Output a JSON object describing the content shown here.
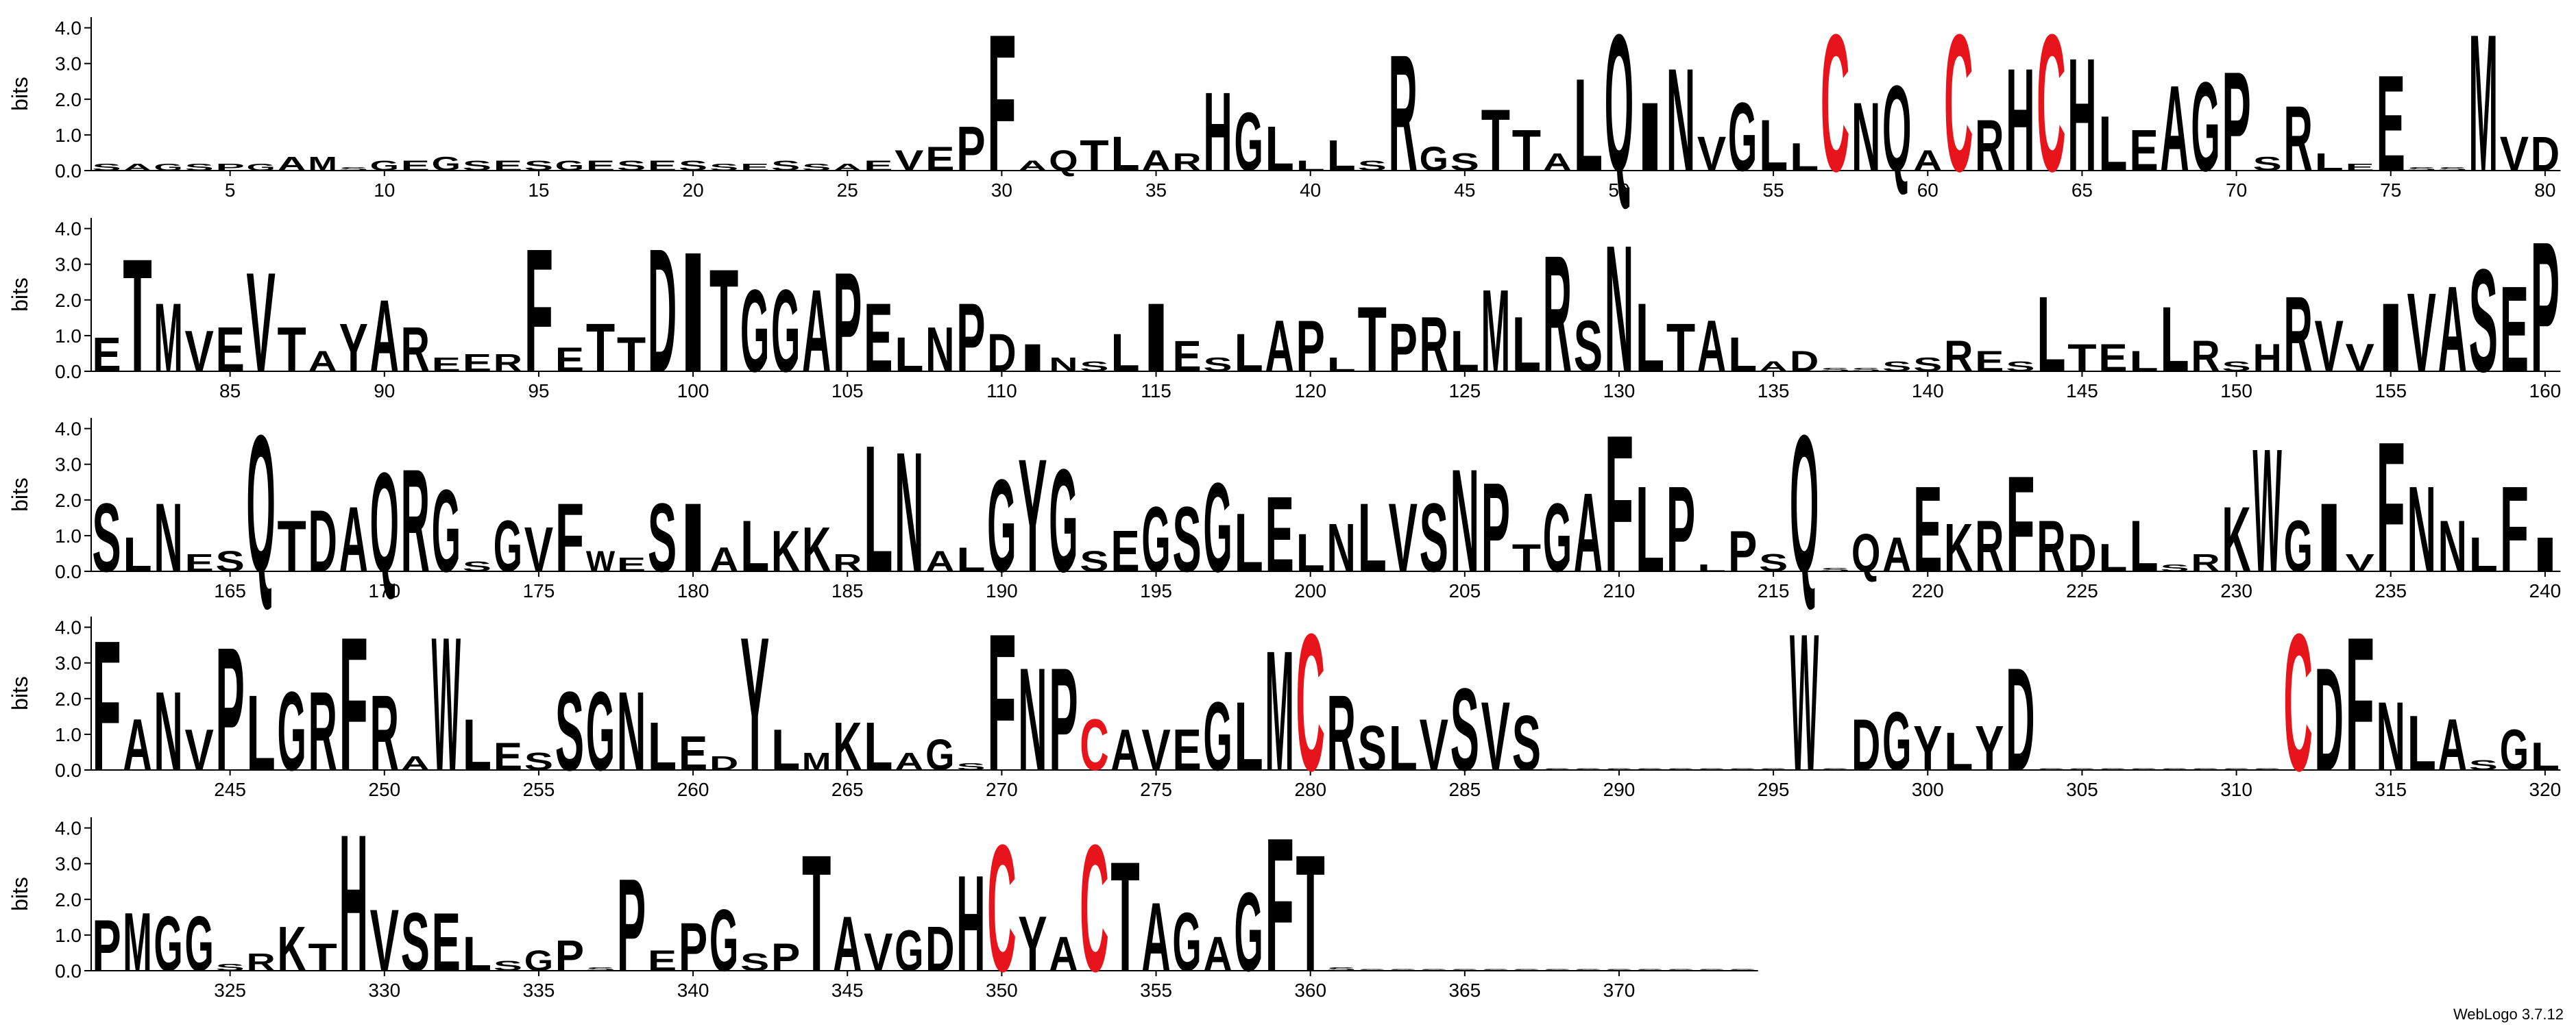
{
  "chart_data": [
    {
      "type": "logo",
      "ylabel": "bits",
      "ylim": [
        0,
        4.3
      ],
      "yticks": [
        {
          "value": 0,
          "label": "0.0"
        },
        {
          "value": 1,
          "label": "1.0"
        },
        {
          "value": 2,
          "label": "2.0"
        },
        {
          "value": 3,
          "label": "3.0"
        },
        {
          "value": 4,
          "label": "4.0"
        }
      ],
      "xlim": [
        0.5,
        80.5
      ],
      "xticks": [
        5,
        10,
        15,
        20,
        25,
        30,
        35,
        40,
        45,
        50,
        55,
        60,
        65,
        70,
        75,
        80
      ],
      "letter_colors": {
        "C": "#e8141b"
      },
      "default_color": "#000000",
      "letters": [
        "S",
        "A",
        "G",
        "S",
        "P",
        "G",
        "A",
        "M",
        "S",
        "G",
        "E",
        "G",
        "S",
        "E",
        "S",
        "G",
        "E",
        "S",
        "E",
        "S",
        "S",
        "E",
        "S",
        "S",
        "A",
        "E",
        "V",
        "E",
        "P",
        "F",
        "A",
        "Q",
        "T",
        "L",
        "A",
        "R",
        "H",
        "G",
        "L",
        "L",
        "L",
        "S",
        "R",
        "G",
        "S",
        "T",
        "T",
        "A",
        "L",
        "Q",
        "I",
        "N",
        "V",
        "G",
        "L",
        "L",
        "C",
        "N",
        "Q",
        "A",
        "C",
        "R",
        "H",
        "C",
        "H",
        "L",
        "E",
        "A",
        "G",
        "P",
        "S",
        "R",
        "L",
        "E",
        "E",
        "S",
        "S",
        "M",
        "V",
        "D"
      ],
      "values": [
        0.2,
        0.2,
        0.2,
        0.2,
        0.2,
        0.2,
        0.4,
        0.4,
        0.1,
        0.3,
        0.3,
        0.4,
        0.3,
        0.3,
        0.3,
        0.3,
        0.3,
        0.3,
        0.3,
        0.3,
        0.2,
        0.2,
        0.3,
        0.2,
        0.2,
        0.3,
        0.6,
        0.7,
        1.3,
        4.0,
        0.3,
        0.6,
        0.9,
        1.0,
        0.6,
        0.5,
        2.3,
        1.7,
        1.3,
        0.3,
        0.9,
        0.3,
        3.4,
        0.7,
        0.5,
        1.8,
        1.2,
        0.5,
        2.7,
        4.0,
        2.0,
        3.0,
        1.0,
        2.0,
        1.5,
        0.8,
        4.0,
        2.0,
        2.5,
        0.6,
        4.0,
        1.5,
        3.0,
        4.0,
        3.3,
        1.6,
        1.2,
        2.5,
        2.6,
        2.9,
        0.4,
        1.9,
        0.5,
        0.2,
        2.8,
        0.1,
        0.1,
        4.0,
        1.0,
        1.0
      ]
    },
    {
      "type": "logo",
      "ylabel": "bits",
      "ylim": [
        0,
        4.3
      ],
      "yticks": [
        {
          "value": 0,
          "label": "0.0"
        },
        {
          "value": 1,
          "label": "1.0"
        },
        {
          "value": 2,
          "label": "2.0"
        },
        {
          "value": 3,
          "label": "3.0"
        },
        {
          "value": 4,
          "label": "4.0"
        }
      ],
      "xlim": [
        80.5,
        160.5
      ],
      "xticks": [
        85,
        90,
        95,
        100,
        105,
        110,
        115,
        120,
        125,
        130,
        135,
        140,
        145,
        150,
        155,
        160
      ],
      "letter_colors": {
        "C": "#e8141b"
      },
      "default_color": "#000000",
      "letters": [
        "E",
        "T",
        "M",
        "V",
        "E",
        "V",
        "T",
        "A",
        "Y",
        "A",
        "R",
        "E",
        "E",
        "R",
        "F",
        "E",
        "T",
        "T",
        "D",
        "I",
        "T",
        "G",
        "G",
        "A",
        "P",
        "E",
        "L",
        "N",
        "P",
        "D",
        "I",
        "N",
        "S",
        "L",
        "I",
        "E",
        "S",
        "L",
        "A",
        "P",
        "L",
        "T",
        "P",
        "R",
        "L",
        "M",
        "L",
        "R",
        "S",
        "N",
        "L",
        "T",
        "A",
        "L",
        "A",
        "D",
        "S",
        "S",
        "S",
        "S",
        "R",
        "E",
        "S",
        "L",
        "T",
        "E",
        "L",
        "L",
        "R",
        "S",
        "H",
        "R",
        "V",
        "V",
        "I",
        "V",
        "A",
        "S",
        "E",
        "P"
      ],
      "values": [
        1.0,
        3.3,
        2.0,
        1.2,
        1.3,
        2.9,
        1.3,
        0.6,
        1.4,
        2.1,
        1.3,
        0.4,
        0.5,
        0.5,
        3.6,
        0.7,
        1.4,
        1.0,
        3.6,
        3.5,
        3.0,
        2.4,
        2.4,
        2.4,
        2.9,
        2.0,
        1.0,
        1.3,
        2.0,
        1.1,
        0.8,
        0.4,
        0.3,
        1.1,
        2.0,
        0.9,
        0.4,
        1.1,
        1.5,
        1.5,
        0.4,
        1.9,
        1.4,
        1.6,
        1.2,
        2.4,
        1.6,
        3.4,
        1.5,
        3.7,
        2.0,
        1.4,
        1.5,
        1.0,
        0.3,
        0.6,
        0.1,
        0.1,
        0.3,
        0.4,
        0.9,
        0.6,
        0.3,
        2.2,
        0.8,
        0.8,
        0.6,
        1.9,
        0.9,
        0.3,
        0.8,
        2.2,
        1.5,
        0.8,
        2.0,
        2.3,
        2.5,
        3.0,
        2.5,
        3.8
      ]
    },
    {
      "type": "logo",
      "ylabel": "bits",
      "ylim": [
        0,
        4.3
      ],
      "yticks": [
        {
          "value": 0,
          "label": "0.0"
        },
        {
          "value": 1,
          "label": "1.0"
        },
        {
          "value": 2,
          "label": "2.0"
        },
        {
          "value": 3,
          "label": "3.0"
        },
        {
          "value": 4,
          "label": "4.0"
        }
      ],
      "xlim": [
        160.5,
        240.5
      ],
      "xticks": [
        165,
        170,
        175,
        180,
        185,
        190,
        195,
        200,
        205,
        210,
        215,
        220,
        225,
        230,
        235,
        240
      ],
      "letter_colors": {
        "C": "#e8141b"
      },
      "default_color": "#000000",
      "letters": [
        "S",
        "L",
        "N",
        "E",
        "S",
        "Q",
        "T",
        "D",
        "A",
        "Q",
        "R",
        "G",
        "S",
        "G",
        "V",
        "F",
        "W",
        "E",
        "S",
        "I",
        "A",
        "L",
        "K",
        "K",
        "R",
        "L",
        "N",
        "A",
        "L",
        "G",
        "Y",
        "G",
        "S",
        "E",
        "G",
        "S",
        "G",
        "L",
        "E",
        "L",
        "N",
        "L",
        "V",
        "S",
        "N",
        "P",
        "T",
        "G",
        "A",
        "F",
        "L",
        "P",
        "L",
        "P",
        "S",
        "Q",
        "S",
        "Q",
        "A",
        "E",
        "K",
        "R",
        "F",
        "R",
        "D",
        "L",
        "L",
        "S",
        "R",
        "K",
        "W",
        "G",
        "I",
        "V",
        "F",
        "N",
        "N",
        "L",
        "F",
        "I"
      ],
      "values": [
        2.0,
        1.0,
        2.0,
        0.5,
        0.6,
        4.0,
        1.5,
        1.8,
        1.9,
        2.9,
        3.0,
        2.4,
        0.3,
        1.5,
        1.3,
        2.0,
        0.6,
        0.4,
        2.0,
        2.0,
        0.7,
        1.5,
        1.2,
        1.3,
        0.5,
        3.7,
        3.5,
        0.6,
        0.7,
        2.7,
        3.3,
        3.0,
        0.6,
        1.2,
        1.9,
        1.9,
        2.6,
        1.7,
        2.2,
        1.1,
        1.4,
        2.0,
        2.0,
        2.0,
        3.0,
        2.6,
        0.8,
        2.0,
        2.3,
        4.0,
        2.5,
        2.5,
        0.2,
        1.2,
        0.5,
        4.0,
        0.1,
        1.1,
        1.0,
        2.5,
        1.4,
        1.5,
        2.8,
        1.5,
        1.1,
        0.8,
        1.5,
        0.2,
        0.5,
        1.9,
        3.6,
        1.5,
        2.0,
        0.5,
        3.8,
        2.5,
        1.5,
        1.0,
        2.5,
        1.0
      ]
    },
    {
      "type": "logo",
      "ylabel": "bits",
      "ylim": [
        0,
        4.3
      ],
      "yticks": [
        {
          "value": 0,
          "label": "0.0"
        },
        {
          "value": 1,
          "label": "1.0"
        },
        {
          "value": 2,
          "label": "2.0"
        },
        {
          "value": 3,
          "label": "3.0"
        },
        {
          "value": 4,
          "label": "4.0"
        }
      ],
      "xlim": [
        240.5,
        320.5
      ],
      "xticks": [
        245,
        250,
        255,
        260,
        265,
        270,
        275,
        280,
        285,
        290,
        295,
        300,
        305,
        310,
        315,
        320
      ],
      "letter_colors": {
        "C": "#e8141b"
      },
      "default_color": "#000000",
      "letters": [
        "F",
        "A",
        "N",
        "V",
        "P",
        "L",
        "G",
        "R",
        "F",
        "R",
        "A",
        "W",
        "L",
        "E",
        "S",
        "S",
        "G",
        "N",
        "L",
        "E",
        "D",
        "Y",
        "L",
        "M",
        "K",
        "L",
        "A",
        "G",
        "S",
        "F",
        "N",
        "P",
        "C",
        "A",
        "V",
        "E",
        "G",
        "L",
        "M",
        "C",
        "R",
        "S",
        "L",
        "V",
        "S",
        "V",
        "S",
        "S",
        "S",
        "S",
        "S",
        "S",
        "S",
        "S",
        "S",
        "W",
        "S",
        "D",
        "G",
        "Y",
        "L",
        "Y",
        "D",
        "S",
        "S",
        "S",
        "S",
        "S",
        "S",
        "S",
        "S",
        "C",
        "D",
        "F",
        "N",
        "L",
        "A",
        "S",
        "G",
        "L"
      ],
      "values": [
        3.8,
        1.5,
        2.3,
        1.2,
        3.6,
        2.2,
        2.3,
        2.3,
        3.9,
        2.2,
        0.4,
        3.9,
        1.5,
        0.8,
        0.5,
        2.3,
        2.3,
        2.3,
        1.4,
        1.0,
        0.4,
        3.9,
        1.2,
        0.5,
        1.4,
        1.4,
        0.5,
        0.9,
        0.2,
        4.0,
        3.0,
        3.0,
        1.5,
        1.2,
        1.2,
        1.2,
        2.0,
        2.0,
        3.5,
        4.0,
        2.2,
        1.3,
        1.3,
        1.5,
        2.4,
        2.0,
        1.6,
        0.05,
        0.05,
        0.05,
        0.05,
        0.05,
        0.05,
        0.05,
        0.05,
        4.0,
        0.05,
        1.5,
        1.7,
        1.3,
        1.1,
        1.3,
        3.0,
        0.05,
        0.05,
        0.05,
        0.05,
        0.05,
        0.05,
        0.05,
        0.05,
        4.0,
        3.0,
        3.9,
        2.0,
        1.6,
        1.5,
        0.3,
        1.2,
        0.8
      ]
    },
    {
      "type": "logo",
      "ylabel": "bits",
      "ylim": [
        0,
        4.3
      ],
      "yticks": [
        {
          "value": 0,
          "label": "0.0"
        },
        {
          "value": 1,
          "label": "1.0"
        },
        {
          "value": 2,
          "label": "2.0"
        },
        {
          "value": 3,
          "label": "3.0"
        },
        {
          "value": 4,
          "label": "4.0"
        }
      ],
      "xlim": [
        320.5,
        374.5
      ],
      "xticks": [
        325,
        330,
        335,
        340,
        345,
        350,
        355,
        360,
        365,
        370
      ],
      "letter_colors": {
        "C": "#e8141b"
      },
      "default_color": "#000000",
      "letters": [
        "P",
        "M",
        "G",
        "G",
        "S",
        "R",
        "K",
        "T",
        "H",
        "V",
        "S",
        "E",
        "L",
        "S",
        "G",
        "P",
        "S",
        "P",
        "E",
        "P",
        "G",
        "S",
        "P",
        "T",
        "A",
        "V",
        "G",
        "D",
        "H",
        "C",
        "Y",
        "A",
        "C",
        "T",
        "A",
        "G",
        "A",
        "G",
        "F",
        "T",
        "S",
        "S",
        "S",
        "S",
        "S",
        "S",
        "S",
        "S",
        "S",
        "S",
        "S",
        "S",
        "S",
        "S"
      ],
      "values": [
        1.5,
        1.7,
        1.6,
        1.6,
        0.2,
        0.5,
        1.3,
        0.8,
        4.0,
        1.8,
        1.7,
        1.7,
        1.0,
        0.3,
        0.6,
        0.9,
        0.1,
        2.7,
        0.6,
        1.4,
        1.8,
        0.5,
        0.8,
        3.4,
        1.6,
        1.1,
        1.2,
        1.3,
        2.8,
        3.7,
        1.6,
        1.0,
        3.7,
        3.2,
        2.0,
        1.7,
        1.0,
        2.3,
        3.9,
        3.4,
        0.1,
        0.05,
        0.05,
        0.05,
        0.05,
        0.05,
        0.05,
        0.05,
        0.05,
        0.05,
        0.05,
        0.05,
        0.05,
        0.05
      ]
    }
  ],
  "footer": "WebLogo 3.7.12"
}
